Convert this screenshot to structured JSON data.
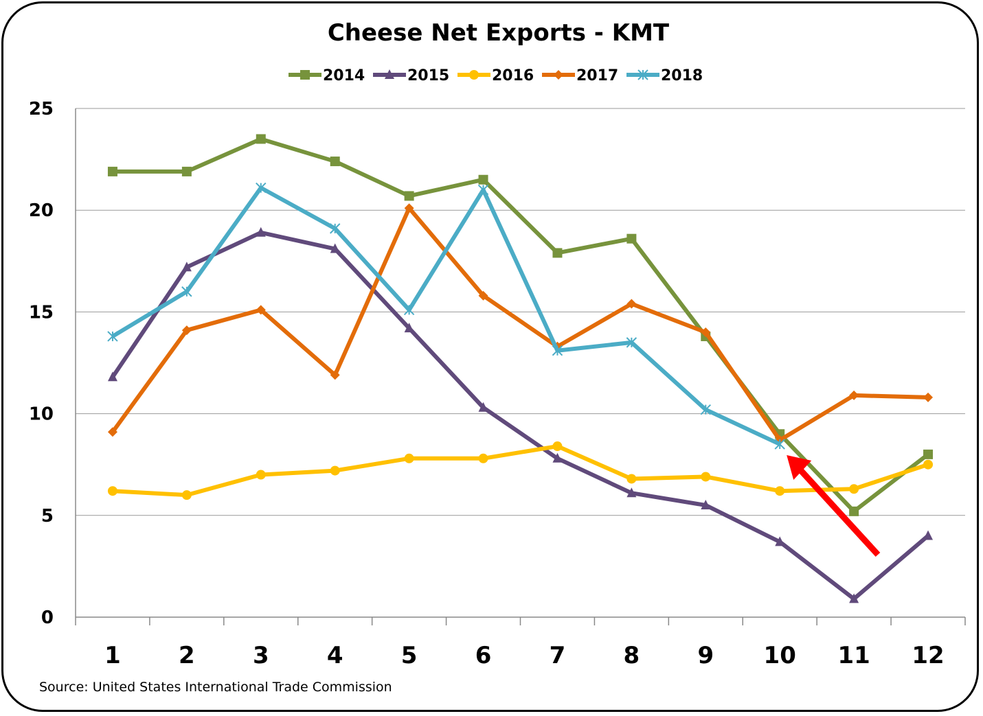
{
  "chart_data": {
    "type": "line",
    "title": "Cheese Net Exports - KMT",
    "source": "Source: United States International Trade Commission",
    "xlabel": "",
    "ylabel": "",
    "categories": [
      "1",
      "2",
      "3",
      "4",
      "5",
      "6",
      "7",
      "8",
      "9",
      "10",
      "11",
      "12"
    ],
    "ylim": [
      0,
      25
    ],
    "yticks": [
      "0",
      "5",
      "10",
      "15",
      "20",
      "25"
    ],
    "grid": true,
    "legend": "top",
    "series": [
      {
        "name": "2014",
        "color": "#77933C",
        "marker": "square",
        "values": [
          21.9,
          21.9,
          23.5,
          22.4,
          20.7,
          21.5,
          17.9,
          18.6,
          13.8,
          9.0,
          5.2,
          8.0
        ]
      },
      {
        "name": "2015",
        "color": "#604A7B",
        "marker": "triangle",
        "values": [
          11.8,
          17.2,
          18.9,
          18.1,
          14.2,
          10.3,
          7.8,
          6.1,
          5.5,
          3.7,
          0.9,
          4.0
        ]
      },
      {
        "name": "2016",
        "color": "#FFC000",
        "marker": "circle",
        "values": [
          6.2,
          6.0,
          7.0,
          7.2,
          7.8,
          7.8,
          8.4,
          6.8,
          6.9,
          6.2,
          6.3,
          7.5
        ]
      },
      {
        "name": "2017",
        "color": "#E36C09",
        "marker": "diamond",
        "values": [
          9.1,
          14.1,
          15.1,
          11.9,
          20.1,
          15.8,
          13.3,
          15.4,
          14.0,
          8.7,
          10.9,
          10.8
        ]
      },
      {
        "name": "2018",
        "color": "#4BACC6",
        "marker": "star",
        "values": [
          13.8,
          16.0,
          21.1,
          19.1,
          15.1,
          21.0,
          13.1,
          13.5,
          10.2,
          8.5,
          null,
          null
        ]
      }
    ],
    "annotations": [
      {
        "type": "arrow",
        "color": "#FF0000",
        "points_to": {
          "x": "10",
          "series": "2018"
        }
      }
    ]
  }
}
